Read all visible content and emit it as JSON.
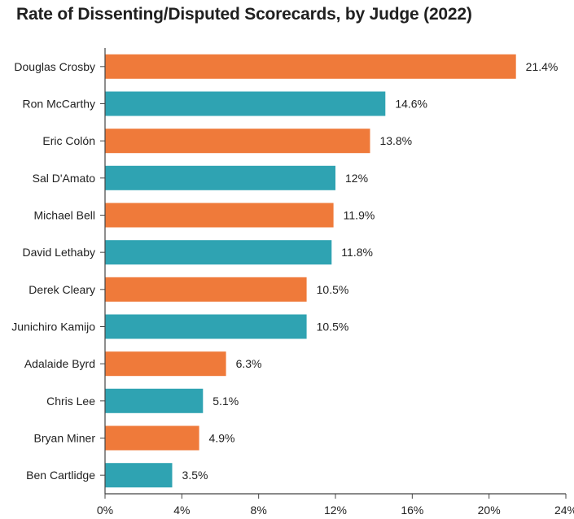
{
  "chart_data": {
    "type": "bar",
    "orientation": "horizontal",
    "title": "Rate of Dissenting/Disputed Scorecards, by Judge (2022)",
    "categories": [
      "Douglas Crosby",
      "Ron McCarthy",
      "Eric Colón",
      "Sal D'Amato",
      "Michael Bell",
      "David Lethaby",
      "Derek Cleary",
      "Junichiro Kamijo",
      "Adalaide Byrd",
      "Chris Lee",
      "Bryan Miner",
      "Ben Cartlidge"
    ],
    "values": [
      21.4,
      14.6,
      13.8,
      12,
      11.9,
      11.8,
      10.5,
      10.5,
      6.3,
      5.1,
      4.9,
      3.5
    ],
    "value_labels": [
      "21.4%",
      "14.6%",
      "13.8%",
      "12%",
      "11.9%",
      "11.8%",
      "10.5%",
      "10.5%",
      "6.3%",
      "5.1%",
      "4.9%",
      "3.5%"
    ],
    "xlim": [
      0,
      24
    ],
    "x_ticks": [
      0,
      4,
      8,
      12,
      16,
      20,
      24
    ],
    "x_tick_labels": [
      "0%",
      "4%",
      "8%",
      "12%",
      "16%",
      "20%",
      "24%"
    ],
    "xlabel": "",
    "ylabel": "",
    "grid": false,
    "legend": "none",
    "colors": {
      "orange": "#ef7a3a",
      "teal": "#2fa3b2",
      "axis": "#444444"
    },
    "bar_color_pattern": [
      "orange",
      "teal"
    ]
  }
}
